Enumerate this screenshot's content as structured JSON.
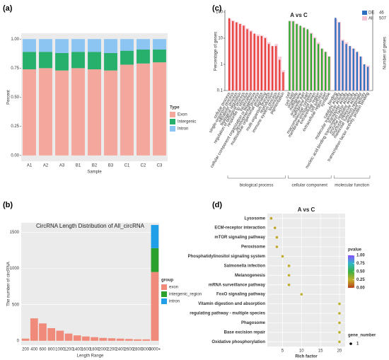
{
  "chart_data": [
    {
      "type": "bar",
      "label": "(a)",
      "ylabel": "Percent",
      "xlabel": "Sample",
      "legend_title": "Type",
      "stacked": true,
      "categories": [
        "A1",
        "A2",
        "A3",
        "B1",
        "B2",
        "B3",
        "C1",
        "C2",
        "C3"
      ],
      "series": [
        {
          "name": "Exon",
          "color": "#f4a79d",
          "values": [
            0.74,
            0.75,
            0.73,
            0.75,
            0.74,
            0.73,
            0.78,
            0.79,
            0.8
          ]
        },
        {
          "name": "Intergenic",
          "color": "#27b06c",
          "values": [
            0.15,
            0.14,
            0.15,
            0.14,
            0.15,
            0.15,
            0.12,
            0.12,
            0.11
          ]
        },
        {
          "name": "Intron",
          "color": "#8cc4f2",
          "values": [
            0.11,
            0.11,
            0.12,
            0.11,
            0.11,
            0.12,
            0.1,
            0.09,
            0.09
          ]
        }
      ],
      "ylim": [
        -0.05,
        1.05
      ],
      "yticks": [
        {
          "value": 0,
          "label": "0.00"
        },
        {
          "value": 0.25,
          "label": "0.25"
        },
        {
          "value": 0.5,
          "label": "0.50"
        },
        {
          "value": 0.75,
          "label": "0.75"
        },
        {
          "value": 1,
          "label": "1.00"
        }
      ],
      "grid": false
    },
    {
      "type": "bar",
      "label": "(b)",
      "title": "CircRNA Length Distribution of All_circRNA",
      "ylabel": "The number of circRNA",
      "xlabel": "Length Range",
      "legend_title": "group",
      "stacked": true,
      "categories": [
        "200",
        "400",
        "600",
        "800",
        "1000",
        "1200",
        "1400",
        "1600",
        "1800",
        "2000",
        "2200",
        "2400",
        "2600",
        "2800",
        "3000",
        "3000+"
      ],
      "series": [
        {
          "name": "exon",
          "color": "#f08a7a",
          "values": [
            30,
            310,
            240,
            175,
            140,
            100,
            75,
            60,
            50,
            40,
            35,
            30,
            25,
            20,
            20,
            950
          ]
        },
        {
          "name": "intergenic_region",
          "color": "#2ca02c",
          "values": [
            0,
            0,
            0,
            0,
            0,
            0,
            0,
            0,
            0,
            0,
            0,
            0,
            0,
            0,
            0,
            330
          ]
        },
        {
          "name": "intron",
          "color": "#1f9fe8",
          "values": [
            0,
            0,
            0,
            0,
            0,
            0,
            0,
            0,
            0,
            0,
            0,
            0,
            0,
            0,
            0,
            320
          ]
        }
      ],
      "ylim": [
        -60,
        1630
      ],
      "yticks": [
        0,
        500,
        1000,
        1500
      ],
      "grid": true
    },
    {
      "type": "go_bar",
      "label": "(c)",
      "title": "A vs C",
      "ylabel": "Percentage of genes",
      "y2label": "Number of genes",
      "log": true,
      "ylim": [
        0.1,
        100
      ],
      "yticks": [
        0.1,
        1,
        10,
        100
      ],
      "legend": [
        {
          "name": "DE",
          "count": 46,
          "color": "#2f6fc0"
        },
        {
          "name": "All",
          "count": 507,
          "color": "#f6c4d4"
        }
      ],
      "groups": [
        {
          "name": "biological process",
          "color": "#e8413c",
          "terms": [
            "cellular process",
            "single-organism process",
            "metabolic process",
            "biological regulation",
            "regulation of biological process",
            "response to stimulus",
            "localization",
            "cellular component organization or biogenesis",
            "developmental process",
            "multicellular organismal process",
            "signaling",
            "multi-organism process",
            "reproduction",
            "immune system process",
            "locomotion",
            "pigmentation"
          ],
          "de": [
            58,
            45,
            40,
            35,
            30,
            22,
            18,
            15,
            12,
            12,
            10,
            6,
            5,
            5,
            1.5,
            0.5
          ],
          "all": [
            55,
            48,
            42,
            36,
            32,
            24,
            20,
            14,
            14,
            13,
            11,
            7,
            5,
            6,
            2,
            0.6
          ]
        },
        {
          "name": "cellular component",
          "color": "#2ea82e",
          "terms": [
            "cell",
            "cell part",
            "organelle",
            "membrane",
            "organelle part",
            "membrane part",
            "macromolecular complex",
            "membrane-enclosed lumen",
            "extracellular region",
            "cell junction",
            "extracellular region part",
            "synapse"
          ],
          "de": [
            45,
            44,
            35,
            30,
            25,
            22,
            15,
            10,
            6,
            4,
            3,
            2
          ],
          "all": [
            46,
            46,
            36,
            28,
            26,
            20,
            16,
            11,
            7,
            4,
            3,
            2
          ]
        },
        {
          "name": "molecular function",
          "color": "#2f6fc0",
          "terms": [
            "binding",
            "catalytic activity",
            "molecular transducer activity",
            "transporter activity",
            "nucleic acid binding transcription factor activity",
            "enzyme regulator activity",
            "structural molecule activity",
            "molecular function regulator",
            "antioxidant activity",
            "transcription factor activity, protein binding"
          ],
          "de": [
            60,
            40,
            8,
            6,
            5,
            4,
            3,
            2,
            1,
            0.8
          ],
          "all": [
            55,
            42,
            9,
            7,
            5,
            4,
            3,
            2,
            1,
            0.9
          ]
        }
      ]
    },
    {
      "type": "bubble",
      "label": "(d)",
      "title": "A vs C",
      "xlabel": "Rich factor",
      "categories": [
        "Lysosome",
        "ECM-receptor interaction",
        "mTOR signaling pathway",
        "Peroxisome",
        "Phosphatidylinositol signaling system",
        "Salmonella infection",
        "Melanogenesis",
        "mRNA surveillance pathway",
        "FoxO signaling pathway",
        "Vitamin digestion and absorption",
        "regulating pathway - multiple species",
        "Phagosome",
        "Base excision repair",
        "Oxidative phosphorylation"
      ],
      "values": [
        2,
        3,
        3.5,
        3.5,
        5,
        6.7,
        6.7,
        6.7,
        10,
        20,
        20,
        20,
        20,
        20
      ],
      "pvalue": [
        0.22,
        0.22,
        0.23,
        0.23,
        0.24,
        0.24,
        0.24,
        0.24,
        0.25,
        0.26,
        0.26,
        0.26,
        0.26,
        0.26
      ],
      "gene_number": [
        1,
        1,
        1,
        1,
        1,
        1,
        1,
        1,
        1,
        1,
        1,
        1,
        1,
        1
      ],
      "xlim": [
        1,
        21.5
      ],
      "xticks": [
        5,
        10,
        15,
        20
      ],
      "grid": true,
      "color_title": "pvalue",
      "clim": [
        0,
        1
      ],
      "cticks": [
        {
          "value": 0,
          "label": "0.00"
        },
        {
          "value": 0.25,
          "label": "0.25"
        },
        {
          "value": 0.5,
          "label": "0.50"
        },
        {
          "value": 0.75,
          "label": "0.75"
        },
        {
          "value": 1,
          "label": "1.00"
        }
      ],
      "colorscale": [
        "#b5421a",
        "#c2b12a",
        "#3cb043",
        "#30b8c8",
        "#8a4dff"
      ],
      "size_title": "gene_number",
      "size_legend": [
        1
      ]
    }
  ]
}
